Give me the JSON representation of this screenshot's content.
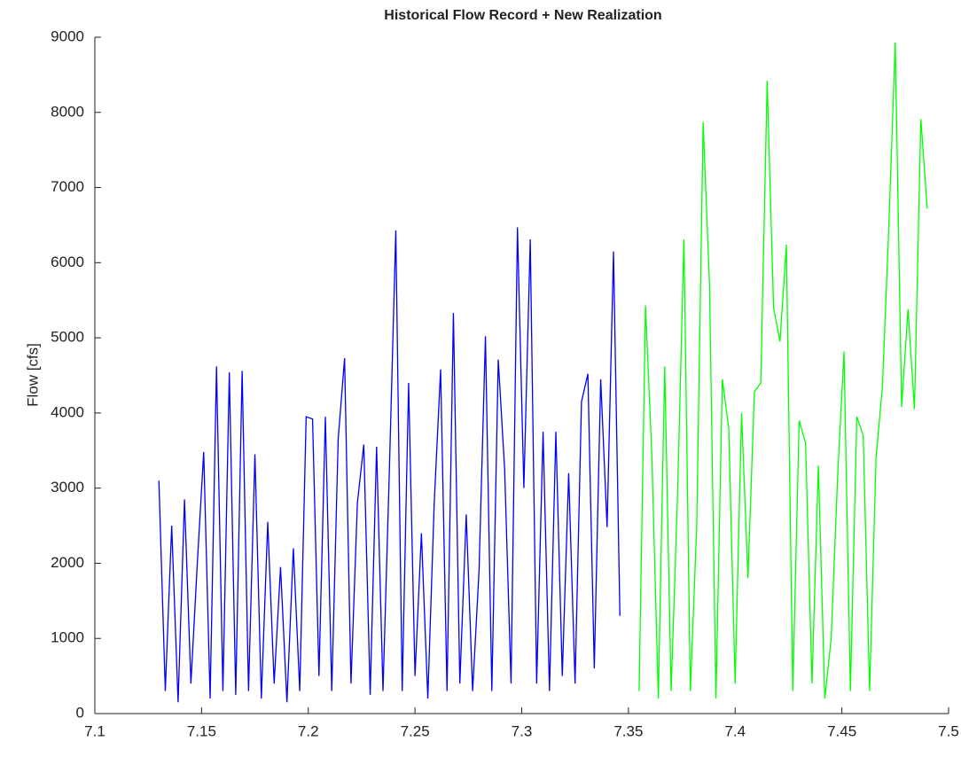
{
  "chart_data": {
    "type": "line",
    "title": "Historical Flow Record + New Realization",
    "y_label": "Flow [cfs]",
    "xlim": [
      7.1,
      7.5
    ],
    "xticks": [
      7.1,
      7.15,
      7.2,
      7.25,
      7.3,
      7.35,
      7.4,
      7.45,
      7.5
    ],
    "ylim": [
      0,
      9000
    ],
    "yticks": [
      0,
      1000,
      2000,
      3000,
      4000,
      5000,
      6000,
      7000,
      8000,
      9000
    ],
    "grid": false,
    "series": [
      {
        "color": "#0000ff",
        "x": [
          7.13,
          7.133,
          7.136,
          7.139,
          7.142,
          7.145,
          7.148,
          7.151,
          7.154,
          7.157,
          7.16,
          7.163,
          7.166,
          7.169,
          7.172,
          7.175,
          7.178,
          7.181,
          7.184,
          7.187,
          7.19,
          7.193,
          7.196,
          7.199,
          7.202,
          7.205,
          7.208,
          7.211,
          7.214,
          7.217,
          7.22,
          7.223,
          7.226,
          7.229,
          7.232,
          7.235,
          7.238,
          7.241,
          7.244,
          7.247,
          7.25,
          7.253,
          7.256,
          7.259,
          7.262,
          7.265,
          7.268,
          7.271,
          7.274,
          7.277,
          7.28,
          7.283,
          7.286,
          7.289,
          7.292,
          7.295,
          7.298,
          7.301,
          7.304,
          7.307,
          7.31,
          7.313,
          7.316,
          7.319,
          7.322,
          7.325,
          7.328,
          7.331,
          7.334,
          7.337,
          7.34,
          7.343,
          7.346
        ],
        "values": [
          3100,
          300,
          2500,
          150,
          2850,
          400,
          2000,
          3480,
          200,
          4620,
          300,
          4540,
          250,
          4560,
          300,
          3450,
          200,
          2550,
          400,
          1950,
          150,
          2200,
          300,
          3950,
          3920,
          500,
          3950,
          300,
          3650,
          4730,
          400,
          2800,
          3580,
          250,
          3550,
          300,
          3250,
          6430,
          300,
          4400,
          500,
          2400,
          200,
          2800,
          4580,
          300,
          5330,
          400,
          2650,
          300,
          1900,
          5020,
          300,
          4710,
          3250,
          400,
          6470,
          3000,
          6310,
          400,
          3750,
          300,
          3750,
          500,
          3200,
          400,
          4150,
          4520,
          600,
          4450,
          2480,
          6150,
          1300
        ]
      },
      {
        "color": "#00ff00",
        "x": [
          7.355,
          7.358,
          7.361,
          7.364,
          7.367,
          7.37,
          7.373,
          7.376,
          7.379,
          7.382,
          7.385,
          7.388,
          7.391,
          7.394,
          7.397,
          7.4,
          7.403,
          7.406,
          7.409,
          7.412,
          7.415,
          7.418,
          7.421,
          7.424,
          7.427,
          7.43,
          7.433,
          7.436,
          7.439,
          7.442,
          7.445,
          7.448,
          7.451,
          7.454,
          7.457,
          7.46,
          7.463,
          7.466,
          7.469,
          7.472,
          7.475,
          7.478,
          7.481,
          7.484,
          7.487,
          7.49
        ],
        "values": [
          300,
          5430,
          3400,
          200,
          4620,
          300,
          2900,
          6310,
          300,
          2500,
          7870,
          5700,
          200,
          4450,
          3800,
          400,
          4000,
          1800,
          4280,
          4400,
          8420,
          5400,
          4950,
          6240,
          300,
          3900,
          3600,
          400,
          3300,
          200,
          1000,
          3150,
          4820,
          300,
          3950,
          3700,
          300,
          3400,
          4350,
          6480,
          8930,
          4080,
          5380,
          4050,
          7910,
          6720
        ]
      }
    ]
  }
}
